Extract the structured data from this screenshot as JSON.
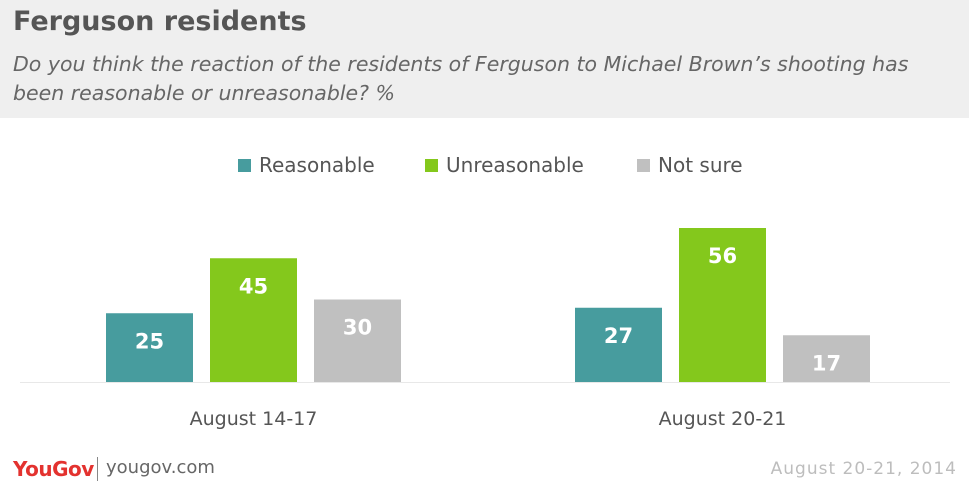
{
  "header": {
    "title": "Ferguson residents",
    "subtitle": "Do you think the reaction of the residents of Ferguson to Michael Brown’s shooting has been reasonable or unreasonable? %"
  },
  "legend": [
    {
      "label": "Reasonable",
      "color": "#479c9e"
    },
    {
      "label": "Unreasonable",
      "color": "#84c81c"
    },
    {
      "label": "Not sure",
      "color": "#c0c0c0"
    }
  ],
  "chart_data": {
    "type": "bar",
    "title": "Ferguson residents",
    "subtitle": "Do you think the reaction of the residents of Ferguson to Michael Brown’s shooting has been reasonable or unreasonable? %",
    "categories": [
      "August 14-17",
      "August 20-21"
    ],
    "series": [
      {
        "name": "Reasonable",
        "values": [
          25,
          27
        ],
        "color": "#479c9e"
      },
      {
        "name": "Unreasonable",
        "values": [
          45,
          56
        ],
        "color": "#84c81c"
      },
      {
        "name": "Not sure",
        "values": [
          30,
          17
        ],
        "color": "#c0c0c0"
      }
    ],
    "ylim": [
      0,
      60
    ],
    "grid": false,
    "legend_position": "top-center",
    "data_labels": true
  },
  "footer": {
    "logo": "YouGov",
    "url": "yougov.com",
    "date": "August 20-21, 2014"
  }
}
